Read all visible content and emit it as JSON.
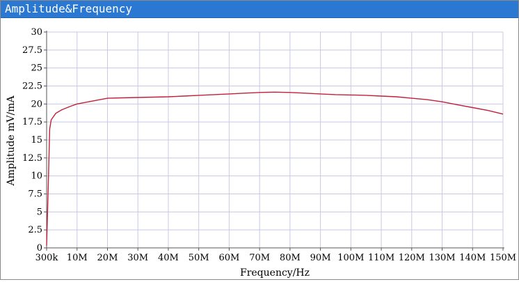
{
  "window": {
    "title": "Amplitude&Frequency"
  },
  "colors": {
    "titlebar": "#2b78d2",
    "grid": "#c8c8e6",
    "axis": "#555555",
    "curve": "#c0203a"
  },
  "chart_data": {
    "type": "line",
    "title": "",
    "xlabel": "Frequency/Hz",
    "ylabel": "Amplitude mV/mA",
    "grid": true,
    "xlim": [
      0,
      15
    ],
    "ylim": [
      0,
      30
    ],
    "x_ticks": [
      "300k",
      "10M",
      "20M",
      "30M",
      "40M",
      "50M",
      "60M",
      "70M",
      "80M",
      "90M",
      "100M",
      "110M",
      "120M",
      "130M",
      "140M",
      "150M"
    ],
    "y_ticks": [
      "0",
      "2.5",
      "5",
      "7.5",
      "10",
      "12.5",
      "15",
      "17.5",
      "20",
      "22.5",
      "25",
      "27.5",
      "30"
    ],
    "series": [
      {
        "name": "",
        "points": [
          [
            0,
            0.3
          ],
          [
            0.05,
            8
          ],
          [
            0.1,
            16.5
          ],
          [
            0.15,
            17.8
          ],
          [
            0.3,
            18.7
          ],
          [
            0.5,
            19.2
          ],
          [
            0.8,
            19.7
          ],
          [
            1.0,
            20.0
          ],
          [
            1.5,
            20.4
          ],
          [
            2,
            20.8
          ],
          [
            2.5,
            20.85
          ],
          [
            3,
            20.9
          ],
          [
            3.5,
            20.95
          ],
          [
            4,
            21.0
          ],
          [
            4.5,
            21.1
          ],
          [
            5,
            21.2
          ],
          [
            5.5,
            21.3
          ],
          [
            6,
            21.4
          ],
          [
            6.5,
            21.5
          ],
          [
            7,
            21.6
          ],
          [
            7.5,
            21.65
          ],
          [
            8,
            21.6
          ],
          [
            8.5,
            21.5
          ],
          [
            9,
            21.4
          ],
          [
            9.5,
            21.3
          ],
          [
            10,
            21.25
          ],
          [
            10.5,
            21.2
          ],
          [
            11,
            21.1
          ],
          [
            11.5,
            21.0
          ],
          [
            12,
            20.8
          ],
          [
            12.5,
            20.6
          ],
          [
            13,
            20.3
          ],
          [
            13.5,
            19.9
          ],
          [
            14,
            19.5
          ],
          [
            14.5,
            19.1
          ],
          [
            15,
            18.6
          ]
        ]
      }
    ]
  }
}
